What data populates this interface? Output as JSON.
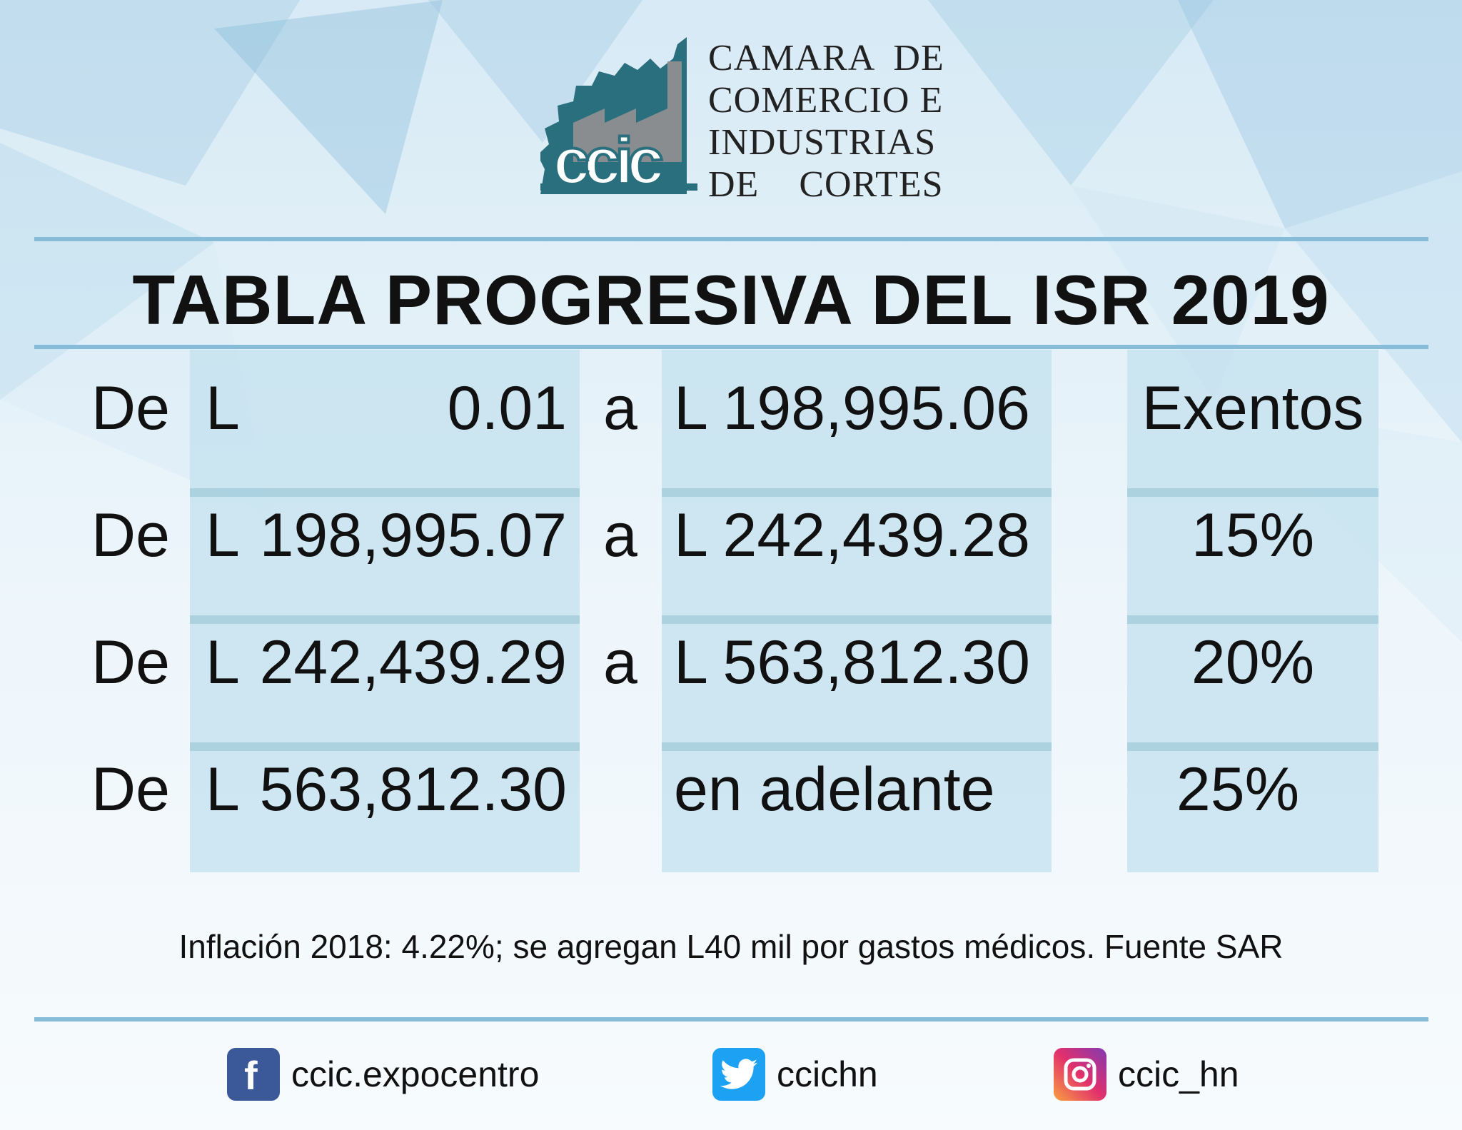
{
  "org": {
    "logo_text": "ccic",
    "name_lines": [
      "CAMARA  DE",
      "COMERCIO E",
      "INDUSTRIAS",
      "DE    CORTES"
    ]
  },
  "title": "TABLA PROGRESIVA DEL ISR 2019",
  "table": {
    "rows": [
      {
        "de": "De",
        "from_currency": "L",
        "from_amount": "0.01",
        "a": "a",
        "to": "L 198,995.06",
        "rate": "Exentos"
      },
      {
        "de": "De",
        "from_currency": "L",
        "from_amount": "198,995.07",
        "a": "a",
        "to": "L 242,439.28",
        "rate": "15%"
      },
      {
        "de": "De",
        "from_currency": "L",
        "from_amount": "242,439.29",
        "a": "a",
        "to": "L 563,812.30",
        "rate": "20%"
      },
      {
        "de": "De",
        "from_currency": "L",
        "from_amount": "563,812.30",
        "a": "",
        "to": "en adelante",
        "rate": "25%"
      }
    ]
  },
  "footnote": "Inflación 2018: 4.22%; se agregan L40 mil por gastos médicos. Fuente SAR",
  "social": [
    {
      "icon": "facebook-icon",
      "handle": "ccic.expocentro",
      "color": "#3b5998"
    },
    {
      "icon": "twitter-icon",
      "handle": "ccichn",
      "color": "#1da1f2"
    },
    {
      "icon": "instagram-icon",
      "handle": "ccic_hn",
      "color": "#c13584"
    }
  ]
}
